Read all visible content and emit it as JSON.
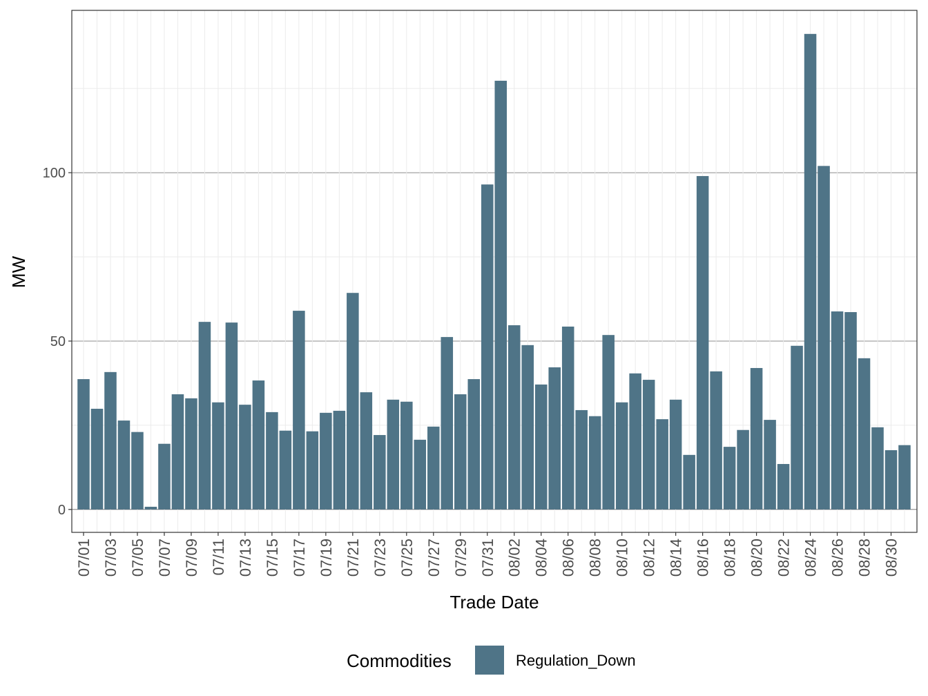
{
  "chart_data": {
    "type": "bar",
    "title": "",
    "xlabel": "Trade Date",
    "ylabel": "MW",
    "ylim": [
      -6.8,
      148.2
    ],
    "yticks": [
      0,
      50,
      100
    ],
    "grid": true,
    "legend": {
      "title": "Commodities",
      "placement": "bottom",
      "entries": [
        "Regulation_Down"
      ]
    },
    "colors": {
      "Regulation_Down": "#4f7487"
    },
    "categories": [
      "07/01",
      "07/02",
      "07/03",
      "07/04",
      "07/05",
      "07/06",
      "07/07",
      "07/08",
      "07/09",
      "07/10",
      "07/11",
      "07/12",
      "07/13",
      "07/14",
      "07/15",
      "07/16",
      "07/17",
      "07/18",
      "07/19",
      "07/20",
      "07/21",
      "07/22",
      "07/23",
      "07/24",
      "07/25",
      "07/26",
      "07/27",
      "07/28",
      "07/29",
      "07/30",
      "07/31",
      "08/01",
      "08/02",
      "08/03",
      "08/04",
      "08/05",
      "08/06",
      "08/07",
      "08/08",
      "08/09",
      "08/10",
      "08/11",
      "08/12",
      "08/13",
      "08/14",
      "08/15",
      "08/16",
      "08/17",
      "08/18",
      "08/19",
      "08/20",
      "08/21",
      "08/22",
      "08/23",
      "08/24",
      "08/25",
      "08/26",
      "08/27",
      "08/28",
      "08/29",
      "08/30",
      "08/31"
    ],
    "xtick_labels": [
      "07/01",
      "07/03",
      "07/05",
      "07/07",
      "07/09",
      "07/11",
      "07/13",
      "07/15",
      "07/17",
      "07/19",
      "07/21",
      "07/23",
      "07/25",
      "07/27",
      "07/29",
      "07/31",
      "08/02",
      "08/04",
      "08/06",
      "08/08",
      "08/10",
      "08/12",
      "08/14",
      "08/16",
      "08/18",
      "08/20",
      "08/22",
      "08/24",
      "08/26",
      "08/28",
      "08/30"
    ],
    "series": [
      {
        "name": "Regulation_Down",
        "values": [
          38.7,
          29.9,
          40.8,
          26.4,
          23.0,
          0.8,
          19.5,
          34.2,
          33.0,
          55.7,
          31.8,
          55.5,
          31.1,
          38.3,
          28.9,
          23.4,
          59.0,
          23.2,
          28.7,
          29.3,
          64.3,
          34.8,
          22.1,
          32.6,
          32.0,
          20.7,
          24.6,
          51.2,
          34.2,
          38.7,
          96.5,
          127.3,
          54.7,
          48.8,
          37.1,
          42.2,
          54.3,
          29.5,
          27.7,
          51.8,
          31.8,
          40.4,
          38.5,
          26.8,
          32.6,
          16.2,
          99.0,
          41.0,
          18.6,
          23.6,
          42.0,
          26.6,
          13.5,
          48.6,
          141.2,
          102.0,
          58.8,
          58.6,
          44.9,
          24.4,
          17.6,
          19.1
        ]
      }
    ]
  }
}
